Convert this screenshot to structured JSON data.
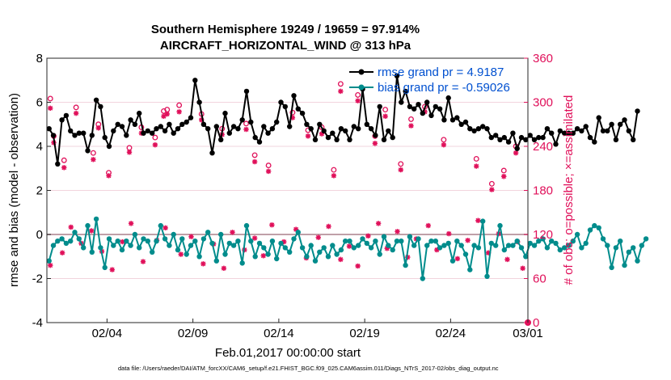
{
  "chart_data": {
    "type": "line",
    "title_line1": "Southern Hemisphere 19249 / 19659 = 97.914%",
    "title_line2": "AIRCRAFT_HORIZONTAL_WIND @ 313 hPa",
    "xlabel": "Feb.01,2017 00:00:00 start",
    "ylabel_left": "rmse and bias (model - observation)",
    "ylabel_right": "# of obs: o=possible; ×=assimilated",
    "footnote": "data file: /Users/raeder/DAI/ATM_forcXX/CAM6_setup/f.e21.FHIST_BGC.f09_025.CAM6assim.011/Diags_NTrS_2017-02/obs_diag_output.nc",
    "xlim": [
      0.5,
      28.5
    ],
    "ylim_left": [
      -4,
      8
    ],
    "ylim_right": [
      0,
      360
    ],
    "xticks": [
      {
        "value": 4,
        "label": "02/04"
      },
      {
        "value": 9,
        "label": "02/09"
      },
      {
        "value": 14,
        "label": "02/14"
      },
      {
        "value": 19,
        "label": "02/19"
      },
      {
        "value": 24,
        "label": "02/24"
      },
      {
        "value": 29,
        "label": "03/01"
      }
    ],
    "yticks_left": [
      {
        "value": -4,
        "label": "-4"
      },
      {
        "value": -2,
        "label": "-2"
      },
      {
        "value": 0,
        "label": "0"
      },
      {
        "value": 2,
        "label": "2"
      },
      {
        "value": 4,
        "label": "4"
      },
      {
        "value": 6,
        "label": "6"
      },
      {
        "value": 8,
        "label": "8"
      }
    ],
    "yticks_right": [
      {
        "value": 0,
        "label": "0"
      },
      {
        "value": 60,
        "label": "60"
      },
      {
        "value": 120,
        "label": "120"
      },
      {
        "value": 180,
        "label": "180"
      },
      {
        "value": 240,
        "label": "240"
      },
      {
        "value": 300,
        "label": "300"
      },
      {
        "value": 360,
        "label": "360"
      }
    ],
    "x_start": 0.625,
    "x_step": 0.25,
    "series": [
      {
        "name": "rmse grand pr = 4.9187",
        "color": "#000000",
        "values": [
          4.8,
          4.5,
          3.2,
          5.2,
          5.4,
          4.7,
          4.5,
          4.6,
          4.6,
          3.8,
          4.5,
          6.1,
          5.8,
          4.4,
          4.0,
          4.7,
          5.0,
          4.9,
          4.5,
          5.2,
          5.0,
          5.5,
          4.6,
          4.7,
          4.6,
          4.8,
          4.9,
          4.7,
          5.0,
          4.6,
          4.8,
          5.0,
          5.1,
          5.3,
          7.0,
          6.0,
          5.0,
          4.8,
          3.7,
          4.9,
          4.3,
          5.5,
          4.6,
          4.9,
          4.8,
          5.2,
          6.5,
          5.1,
          4.4,
          4.2,
          4.9,
          4.6,
          4.8,
          5.1,
          6.0,
          5.8,
          4.9,
          6.3,
          5.7,
          5.5,
          5.0,
          4.8,
          4.3,
          5.0,
          4.7,
          4.4,
          4.6,
          4.3,
          4.8,
          4.7,
          4.3,
          4.9,
          4.8,
          6.6,
          5.0,
          4.8,
          4.5,
          5.8,
          4.3,
          4.7,
          4.4,
          7.2,
          6.0,
          6.5,
          5.8,
          5.7,
          5.9,
          5.5,
          6.0,
          5.4,
          5.8,
          5.7,
          5.2,
          6.2,
          5.2,
          5.3,
          5.0,
          5.1,
          4.8,
          4.7,
          4.8,
          4.9,
          4.8,
          4.4,
          4.5,
          4.3,
          4.4,
          4.2,
          4.6,
          3.9,
          4.4,
          4.3,
          4.5,
          4.3,
          4.4,
          4.4,
          4.8,
          4.6,
          4.1,
          4.7,
          4.6,
          4.6,
          4.6,
          4.8,
          4.7,
          4.9,
          4.4,
          4.2,
          5.3,
          4.7,
          4.7,
          5.0,
          4.3,
          5.0,
          5.2,
          4.7,
          4.3,
          5.6
        ]
      },
      {
        "name": "bias grand pr = -0.59026",
        "color": "#008c8c",
        "values": [
          -1.2,
          -0.5,
          -0.3,
          -0.2,
          -0.4,
          -0.3,
          0.1,
          -0.2,
          -0.6,
          0.4,
          -0.8,
          0.7,
          -0.6,
          -1.5,
          -0.2,
          -0.5,
          -0.3,
          -0.7,
          -0.3,
          -0.5,
          0.0,
          -0.6,
          -0.2,
          -0.3,
          -0.8,
          -0.3,
          0.4,
          -0.2,
          -0.5,
          0.0,
          -0.7,
          -0.2,
          -0.9,
          -0.5,
          -0.3,
          -1.0,
          -0.2,
          0.1,
          -0.4,
          -1.2,
          0.0,
          -0.9,
          -0.4,
          -0.5,
          -0.3,
          -1.3,
          0.4,
          -0.3,
          -1.0,
          -0.4,
          -0.6,
          -0.9,
          -0.3,
          -1.1,
          -0.4,
          -0.6,
          -0.8,
          -0.2,
          0.1,
          -0.6,
          -1.0,
          -0.5,
          -1.2,
          -0.8,
          -0.6,
          -1.0,
          -0.5,
          -0.9,
          -0.7,
          -0.3,
          -0.3,
          -0.6,
          -0.5,
          -0.2,
          -0.4,
          -0.6,
          -0.3,
          -0.9,
          -0.1,
          -0.5,
          -0.7,
          -0.3,
          -0.3,
          -1.4,
          -0.1,
          -0.5,
          -0.2,
          -2.0,
          -0.5,
          -0.3,
          -0.3,
          -0.6,
          -0.5,
          -0.4,
          -1.2,
          -0.3,
          -0.5,
          -0.9,
          -1.6,
          -0.5,
          -0.6,
          0.6,
          -1.9,
          -0.4,
          -0.5,
          0.4,
          -0.7,
          -0.5,
          -0.5,
          -0.3,
          -0.6,
          -1.0,
          -0.4,
          -0.5,
          -0.3,
          -0.2,
          -0.6,
          -0.3,
          -0.4,
          -0.7,
          -0.6,
          -0.5,
          -0.3,
          0.0,
          -0.6,
          -0.4,
          0.2,
          0.4,
          0.3,
          -0.2,
          -0.5,
          -1.5,
          -0.6,
          -0.3,
          -1.4,
          -0.8,
          -0.6,
          -1.2,
          -0.5,
          -0.2
        ]
      }
    ],
    "obs_possible": [
      {
        "x": 0.7,
        "n": 305
      },
      {
        "x": 0.9,
        "n": 254
      },
      {
        "x": 1.5,
        "n": 221
      },
      {
        "x": 2.2,
        "n": 293
      },
      {
        "x": 3.2,
        "n": 231
      },
      {
        "x": 3.5,
        "n": 270
      },
      {
        "x": 4.1,
        "n": 204
      },
      {
        "x": 5.3,
        "n": 238
      },
      {
        "x": 6.0,
        "n": 266
      },
      {
        "x": 6.8,
        "n": 252
      },
      {
        "x": 7.3,
        "n": 288
      },
      {
        "x": 7.5,
        "n": 290
      },
      {
        "x": 8.2,
        "n": 296
      },
      {
        "x": 9.5,
        "n": 284
      },
      {
        "x": 10.7,
        "n": 264
      },
      {
        "x": 12.1,
        "n": 271
      },
      {
        "x": 12.6,
        "n": 228
      },
      {
        "x": 13.4,
        "n": 214
      },
      {
        "x": 14.8,
        "n": 286
      },
      {
        "x": 15.7,
        "n": 262
      },
      {
        "x": 16.5,
        "n": 266
      },
      {
        "x": 17.2,
        "n": 208
      },
      {
        "x": 17.6,
        "n": 325
      },
      {
        "x": 18.6,
        "n": 310
      },
      {
        "x": 19.6,
        "n": 254
      },
      {
        "x": 20.2,
        "n": 290
      },
      {
        "x": 21.1,
        "n": 216
      },
      {
        "x": 21.7,
        "n": 277
      },
      {
        "x": 22.5,
        "n": 294
      },
      {
        "x": 23.6,
        "n": 249
      },
      {
        "x": 25.5,
        "n": 223
      },
      {
        "x": 26.4,
        "n": 189
      },
      {
        "x": 27.1,
        "n": 207
      },
      {
        "x": 27.8,
        "n": 240
      }
    ],
    "obs_assimilated": [
      {
        "x": 0.7,
        "n": 292
      },
      {
        "x": 0.9,
        "n": 245
      },
      {
        "x": 1.5,
        "n": 211
      },
      {
        "x": 2.2,
        "n": 285
      },
      {
        "x": 3.2,
        "n": 222
      },
      {
        "x": 3.5,
        "n": 265
      },
      {
        "x": 4.1,
        "n": 200
      },
      {
        "x": 5.3,
        "n": 232
      },
      {
        "x": 6.0,
        "n": 258
      },
      {
        "x": 6.8,
        "n": 242
      },
      {
        "x": 7.3,
        "n": 281
      },
      {
        "x": 7.5,
        "n": 284
      },
      {
        "x": 8.2,
        "n": 287
      },
      {
        "x": 9.5,
        "n": 276
      },
      {
        "x": 10.7,
        "n": 256
      },
      {
        "x": 12.1,
        "n": 263
      },
      {
        "x": 12.6,
        "n": 219
      },
      {
        "x": 13.4,
        "n": 206
      },
      {
        "x": 14.8,
        "n": 279
      },
      {
        "x": 15.7,
        "n": 254
      },
      {
        "x": 16.5,
        "n": 257
      },
      {
        "x": 17.2,
        "n": 200
      },
      {
        "x": 17.6,
        "n": 315
      },
      {
        "x": 18.6,
        "n": 302
      },
      {
        "x": 19.6,
        "n": 244
      },
      {
        "x": 20.2,
        "n": 281
      },
      {
        "x": 21.1,
        "n": 208
      },
      {
        "x": 21.7,
        "n": 268
      },
      {
        "x": 22.5,
        "n": 287
      },
      {
        "x": 23.6,
        "n": 242
      },
      {
        "x": 25.5,
        "n": 213
      },
      {
        "x": 26.4,
        "n": 181
      },
      {
        "x": 27.1,
        "n": 199
      },
      {
        "x": 27.8,
        "n": 231
      },
      {
        "x": 0.7,
        "n": 78
      },
      {
        "x": 1.4,
        "n": 95
      },
      {
        "x": 1.9,
        "n": 130
      },
      {
        "x": 2.5,
        "n": 108
      },
      {
        "x": 3.1,
        "n": 125
      },
      {
        "x": 3.7,
        "n": 97
      },
      {
        "x": 4.3,
        "n": 72
      },
      {
        "x": 4.9,
        "n": 110
      },
      {
        "x": 5.4,
        "n": 135
      },
      {
        "x": 6.1,
        "n": 83
      },
      {
        "x": 6.9,
        "n": 112
      },
      {
        "x": 7.4,
        "n": 129
      },
      {
        "x": 8.3,
        "n": 93
      },
      {
        "x": 8.9,
        "n": 117
      },
      {
        "x": 9.6,
        "n": 80
      },
      {
        "x": 10.2,
        "n": 107
      },
      {
        "x": 10.8,
        "n": 74
      },
      {
        "x": 11.3,
        "n": 123
      },
      {
        "x": 12.0,
        "n": 99
      },
      {
        "x": 12.6,
        "n": 115
      },
      {
        "x": 13.1,
        "n": 91
      },
      {
        "x": 13.6,
        "n": 133
      },
      {
        "x": 14.3,
        "n": 110
      },
      {
        "x": 15.0,
        "n": 127
      },
      {
        "x": 15.6,
        "n": 88
      },
      {
        "x": 16.3,
        "n": 116
      },
      {
        "x": 16.9,
        "n": 131
      },
      {
        "x": 17.6,
        "n": 86
      },
      {
        "x": 18.1,
        "n": 104
      },
      {
        "x": 18.6,
        "n": 77
      },
      {
        "x": 19.2,
        "n": 118
      },
      {
        "x": 19.8,
        "n": 135
      },
      {
        "x": 20.3,
        "n": 101
      },
      {
        "x": 20.9,
        "n": 124
      },
      {
        "x": 21.5,
        "n": 89
      },
      {
        "x": 22.0,
        "n": 114
      },
      {
        "x": 22.7,
        "n": 132
      },
      {
        "x": 23.2,
        "n": 99
      },
      {
        "x": 23.9,
        "n": 121
      },
      {
        "x": 24.4,
        "n": 87
      },
      {
        "x": 25.0,
        "n": 112
      },
      {
        "x": 25.6,
        "n": 139
      },
      {
        "x": 26.2,
        "n": 95
      },
      {
        "x": 26.8,
        "n": 121
      },
      {
        "x": 27.3,
        "n": 86
      },
      {
        "x": 27.9,
        "n": 110
      },
      {
        "x": 28.2,
        "n": 74
      }
    ],
    "marker_color": "#e0105a",
    "zero_line_color": "#c0a0a8"
  }
}
